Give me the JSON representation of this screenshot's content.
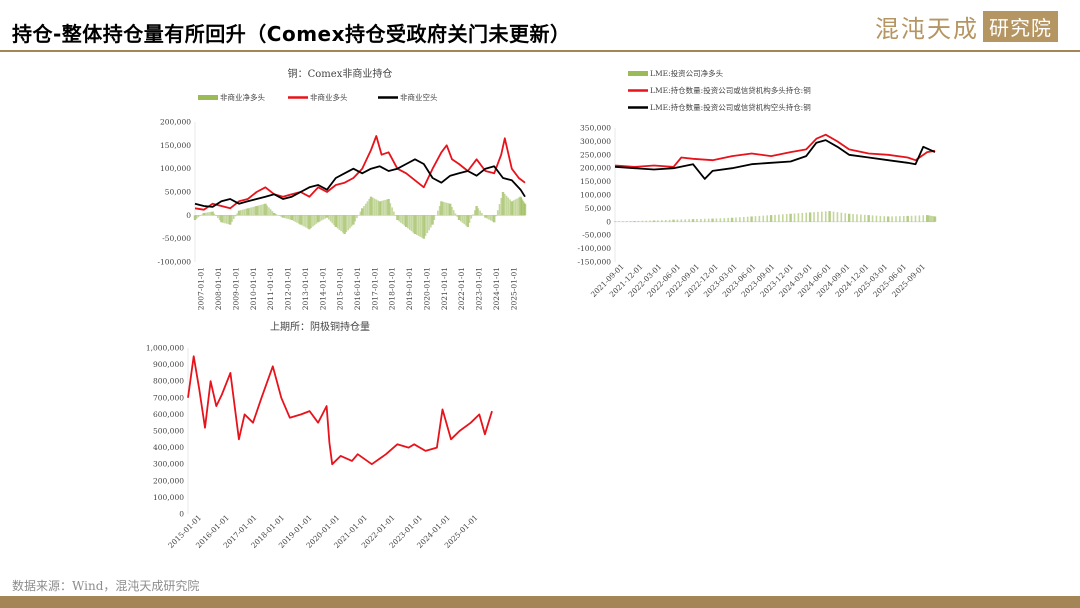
{
  "header": {
    "title": "持仓-整体持仓量有所回升（Comex持仓受政府关门未更新）",
    "logo_main": "混沌天成",
    "logo_box": "研究院"
  },
  "footer": {
    "source": "数据来源：Wind，混沌天成研究院"
  },
  "colors": {
    "brand": "#a48556",
    "red": "#e8121b",
    "black": "#000000",
    "green": "#9bbb59"
  },
  "chart_data": [
    {
      "id": "comex",
      "type": "line",
      "title": "铜：Comex非商业持仓",
      "legend_position": "top",
      "grid": false,
      "ylim": [
        -100000,
        200000
      ],
      "ytick_values": [
        -100000,
        -50000,
        0,
        50000,
        100000,
        150000,
        200000
      ],
      "ytick_labels": [
        "-100,000",
        "-50,000",
        "0",
        "50,000",
        "100,000",
        "150,000",
        "200,000"
      ],
      "x_years": [
        2007,
        2025.75
      ],
      "xtick_labels": [
        "2007-01-01",
        "2008-01-01",
        "2009-01-01",
        "2010-01-01",
        "2011-01-01",
        "2012-01-01",
        "2013-01-01",
        "2014-01-01",
        "2015-01-01",
        "2016-01-01",
        "2017-01-01",
        "2018-01-01",
        "2019-01-01",
        "2020-01-01",
        "2021-01-01",
        "2022-01-01",
        "2023-01-01",
        "2024-01-01",
        "2025-01-01"
      ],
      "series": [
        {
          "name": "非商业净多头",
          "style": "bar",
          "color": "#9bbb59",
          "x": [
            2007.0,
            2007.5,
            2008.0,
            2008.5,
            2009.0,
            2009.5,
            2010.0,
            2010.5,
            2011.0,
            2011.5,
            2012.0,
            2012.5,
            2013.0,
            2013.5,
            2014.0,
            2014.5,
            2015.0,
            2015.5,
            2016.0,
            2016.5,
            2017.0,
            2017.5,
            2018.0,
            2018.5,
            2019.0,
            2019.5,
            2020.0,
            2020.5,
            2021.0,
            2021.5,
            2022.0,
            2022.5,
            2023.0,
            2023.5,
            2024.0,
            2024.5,
            2025.0,
            2025.5,
            2025.75
          ],
          "values": [
            -10000,
            5000,
            8000,
            -15000,
            -20000,
            10000,
            15000,
            20000,
            25000,
            5000,
            -5000,
            -10000,
            -20000,
            -30000,
            -15000,
            -5000,
            -25000,
            -40000,
            -20000,
            15000,
            40000,
            30000,
            35000,
            -10000,
            -25000,
            -40000,
            -50000,
            -20000,
            30000,
            25000,
            -10000,
            -25000,
            20000,
            -5000,
            -15000,
            50000,
            30000,
            40000,
            25000
          ]
        },
        {
          "name": "非商业多头",
          "style": "line",
          "color": "#e8121b",
          "x": [
            2007.0,
            2007.5,
            2008.0,
            2008.5,
            2009.0,
            2009.5,
            2010.0,
            2010.5,
            2011.0,
            2011.5,
            2012.0,
            2012.5,
            2013.0,
            2013.5,
            2014.0,
            2014.5,
            2015.0,
            2015.5,
            2016.0,
            2016.5,
            2017.0,
            2017.3,
            2017.6,
            2018.0,
            2018.5,
            2019.0,
            2019.5,
            2020.0,
            2020.5,
            2021.0,
            2021.3,
            2021.6,
            2022.0,
            2022.5,
            2023.0,
            2023.5,
            2024.0,
            2024.4,
            2024.6,
            2025.0,
            2025.4,
            2025.75
          ],
          "values": [
            15000,
            12000,
            25000,
            20000,
            15000,
            30000,
            35000,
            50000,
            60000,
            45000,
            40000,
            45000,
            50000,
            40000,
            60000,
            50000,
            65000,
            70000,
            80000,
            100000,
            140000,
            170000,
            130000,
            135000,
            100000,
            90000,
            75000,
            60000,
            100000,
            135000,
            150000,
            120000,
            110000,
            95000,
            120000,
            95000,
            90000,
            130000,
            165000,
            100000,
            80000,
            70000
          ]
        },
        {
          "name": "非商业空头",
          "style": "line",
          "color": "#000000",
          "x": [
            2007.0,
            2007.5,
            2008.0,
            2008.5,
            2009.0,
            2009.5,
            2010.0,
            2010.5,
            2011.0,
            2011.5,
            2012.0,
            2012.5,
            2013.0,
            2013.5,
            2014.0,
            2014.5,
            2015.0,
            2015.5,
            2016.0,
            2016.5,
            2017.0,
            2017.5,
            2018.0,
            2018.5,
            2019.0,
            2019.5,
            2020.0,
            2020.5,
            2021.0,
            2021.5,
            2022.0,
            2022.5,
            2023.0,
            2023.5,
            2024.0,
            2024.5,
            2025.0,
            2025.5,
            2025.75
          ],
          "values": [
            25000,
            20000,
            18000,
            30000,
            35000,
            25000,
            30000,
            35000,
            40000,
            45000,
            35000,
            40000,
            50000,
            60000,
            65000,
            55000,
            80000,
            90000,
            100000,
            90000,
            100000,
            105000,
            95000,
            100000,
            110000,
            120000,
            110000,
            80000,
            70000,
            85000,
            90000,
            95000,
            85000,
            100000,
            105000,
            80000,
            75000,
            55000,
            40000
          ]
        }
      ]
    },
    {
      "id": "lme",
      "type": "line",
      "title": "",
      "legend_position": "top",
      "grid": false,
      "ylim": [
        -150000,
        350000
      ],
      "ytick_values": [
        -150000,
        -100000,
        -50000,
        0,
        50000,
        100000,
        150000,
        200000,
        250000,
        300000,
        350000
      ],
      "ytick_labels": [
        "-150,000",
        "-100,000",
        "-50,000",
        "0",
        "50,000",
        "100,000",
        "150,000",
        "200,000",
        "250,000",
        "300,000",
        "350,000"
      ],
      "x_years": [
        2021.75,
        2025.85
      ],
      "xtick_labels": [
        "2021-09-01",
        "2021-12-01",
        "2022-03-01",
        "2022-06-01",
        "2022-09-01",
        "2022-12-01",
        "2023-03-01",
        "2023-06-01",
        "2023-09-01",
        "2023-12-01",
        "2024-03-01",
        "2024-06-01",
        "2024-09-01",
        "2024-12-01",
        "2025-03-01",
        "2025-06-01",
        "2025-09-01"
      ],
      "series": [
        {
          "name": "LME:投资公司净多头",
          "style": "bar",
          "color": "#9bbb59",
          "x": [
            2021.75,
            2022.0,
            2022.25,
            2022.5,
            2022.75,
            2023.0,
            2023.25,
            2023.5,
            2023.75,
            2024.0,
            2024.25,
            2024.5,
            2024.75,
            2025.0,
            2025.25,
            2025.5,
            2025.75,
            2025.85
          ],
          "values": [
            2000,
            3000,
            5000,
            8000,
            10000,
            12000,
            15000,
            20000,
            25000,
            30000,
            35000,
            40000,
            30000,
            25000,
            20000,
            22000,
            25000,
            20000
          ]
        },
        {
          "name": "LME:持仓数量:投资公司或信贷机构多头持仓:铜",
          "style": "line",
          "color": "#e8121b",
          "x": [
            2021.75,
            2022.0,
            2022.25,
            2022.5,
            2022.6,
            2022.75,
            2023.0,
            2023.25,
            2023.5,
            2023.75,
            2024.0,
            2024.2,
            2024.33,
            2024.45,
            2024.6,
            2024.75,
            2025.0,
            2025.25,
            2025.5,
            2025.6,
            2025.75,
            2025.85
          ],
          "values": [
            210000,
            205000,
            210000,
            205000,
            240000,
            235000,
            230000,
            245000,
            255000,
            245000,
            260000,
            270000,
            310000,
            325000,
            300000,
            270000,
            255000,
            250000,
            240000,
            230000,
            260000,
            265000
          ]
        },
        {
          "name": "LME:持仓数量:投资公司或信贷机构空头持仓:铜",
          "style": "line",
          "color": "#000000",
          "x": [
            2021.75,
            2022.0,
            2022.25,
            2022.5,
            2022.75,
            2022.9,
            2023.0,
            2023.25,
            2023.5,
            2023.75,
            2024.0,
            2024.2,
            2024.33,
            2024.45,
            2024.6,
            2024.75,
            2025.0,
            2025.25,
            2025.5,
            2025.6,
            2025.7,
            2025.85
          ],
          "values": [
            205000,
            200000,
            195000,
            200000,
            215000,
            160000,
            190000,
            200000,
            215000,
            220000,
            225000,
            245000,
            295000,
            305000,
            280000,
            250000,
            240000,
            230000,
            220000,
            215000,
            280000,
            260000
          ]
        }
      ]
    },
    {
      "id": "shfe",
      "type": "line",
      "title": "上期所：阴极铜持仓量",
      "legend_position": "none",
      "grid": false,
      "ylim": [
        0,
        1000000
      ],
      "ytick_values": [
        0,
        100000,
        200000,
        300000,
        400000,
        500000,
        600000,
        700000,
        800000,
        900000,
        1000000
      ],
      "ytick_labels": [
        "0",
        "100,000",
        "200,000",
        "300,000",
        "400,000",
        "500,000",
        "600,000",
        "700,000",
        "800,000",
        "900,000",
        "1,000,000"
      ],
      "x_years": [
        2015,
        2025.75
      ],
      "xtick_labels": [
        "2015-01-01",
        "2016-01-01",
        "2017-01-01",
        "2018-01-01",
        "2019-01-01",
        "2020-01-01",
        "2021-01-01",
        "2022-01-01",
        "2023-01-01",
        "2024-01-01",
        "2025-01-01"
      ],
      "series": [
        {
          "name": "",
          "style": "line",
          "color": "#e8121b",
          "x": [
            2015.0,
            2015.2,
            2015.4,
            2015.6,
            2015.8,
            2016.0,
            2016.2,
            2016.5,
            2016.8,
            2017.0,
            2017.3,
            2017.6,
            2018.0,
            2018.3,
            2018.6,
            2019.0,
            2019.3,
            2019.6,
            2019.9,
            2020.0,
            2020.1,
            2020.4,
            2020.8,
            2021.0,
            2021.5,
            2022.0,
            2022.4,
            2022.8,
            2023.0,
            2023.4,
            2023.8,
            2024.0,
            2024.3,
            2024.6,
            2025.0,
            2025.3,
            2025.5,
            2025.75
          ],
          "values": [
            700000,
            950000,
            750000,
            520000,
            800000,
            650000,
            720000,
            850000,
            450000,
            600000,
            550000,
            700000,
            890000,
            700000,
            580000,
            600000,
            620000,
            550000,
            650000,
            430000,
            300000,
            350000,
            320000,
            360000,
            300000,
            360000,
            420000,
            400000,
            420000,
            380000,
            400000,
            630000,
            450000,
            500000,
            550000,
            600000,
            480000,
            620000
          ]
        }
      ]
    }
  ]
}
